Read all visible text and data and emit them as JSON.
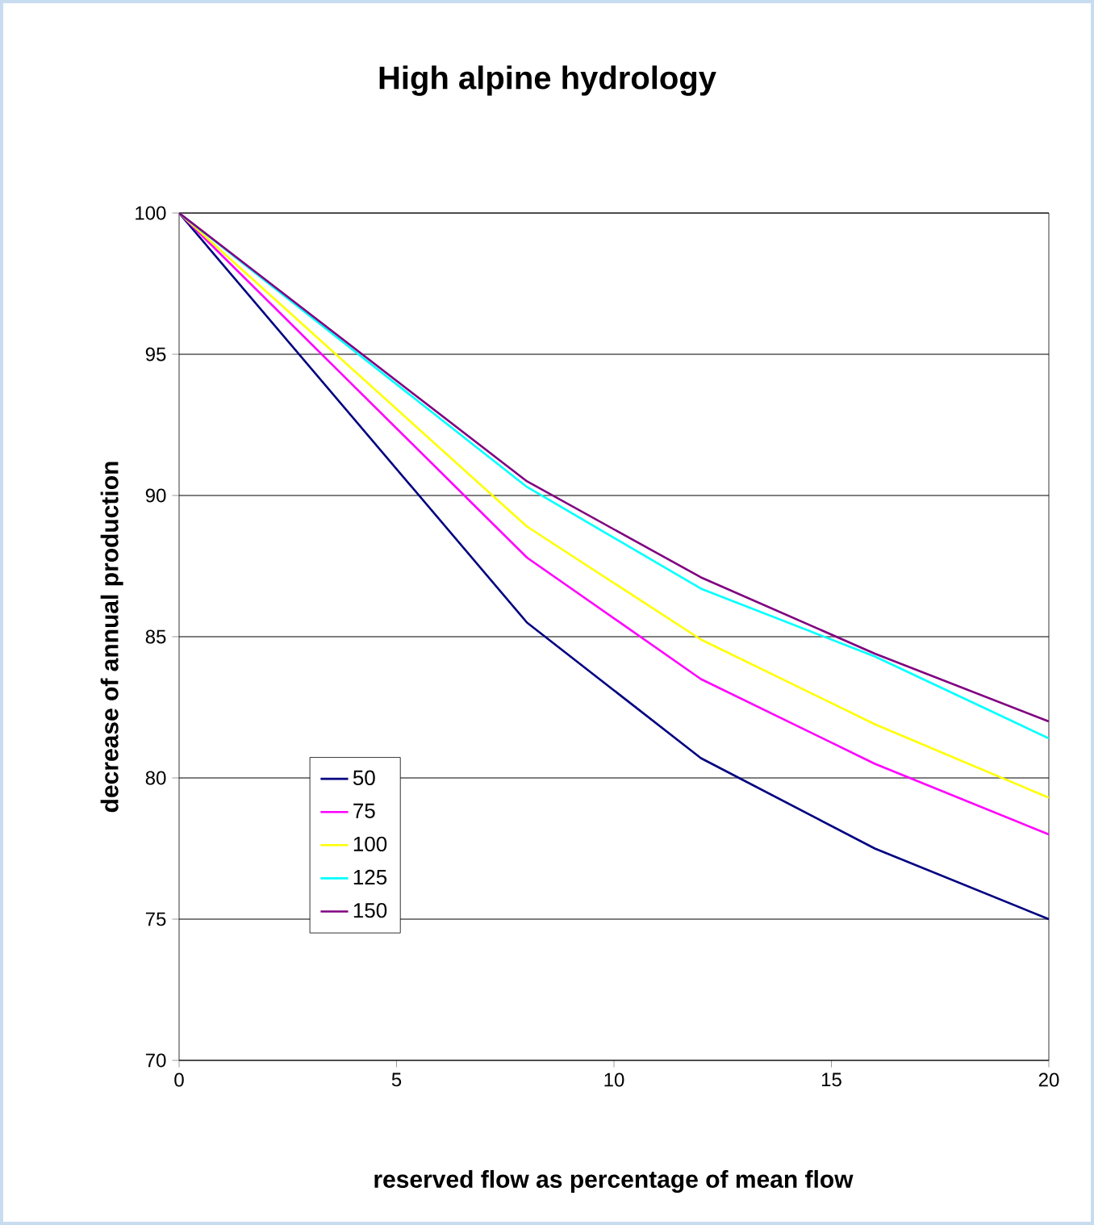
{
  "chart_data": {
    "type": "line",
    "title": "High alpine hydrology",
    "xlabel": "reserved flow as percentage of mean flow",
    "ylabel": "decrease of annual production",
    "x": [
      0,
      8,
      12,
      16,
      20
    ],
    "series": [
      {
        "name": "50",
        "color": "#000080",
        "values": [
          100,
          85.5,
          80.7,
          77.5,
          75.0
        ]
      },
      {
        "name": "75",
        "color": "#ff00ff",
        "values": [
          100,
          87.8,
          83.5,
          80.5,
          78.0
        ]
      },
      {
        "name": "100",
        "color": "#ffff00",
        "values": [
          100,
          88.9,
          84.9,
          81.9,
          79.3
        ]
      },
      {
        "name": "125",
        "color": "#00ffff",
        "values": [
          100,
          90.3,
          86.7,
          84.3,
          81.4
        ]
      },
      {
        "name": "150",
        "color": "#800080",
        "values": [
          100,
          90.5,
          87.1,
          84.4,
          82.0
        ]
      }
    ],
    "xlim": [
      0,
      20
    ],
    "ylim": [
      70,
      100
    ],
    "xticks": [
      0,
      5,
      10,
      15,
      20
    ],
    "yticks": [
      70,
      75,
      80,
      85,
      90,
      95,
      100
    ],
    "grid": "y",
    "legend": "left",
    "marker": "none",
    "line_style": "solid"
  }
}
